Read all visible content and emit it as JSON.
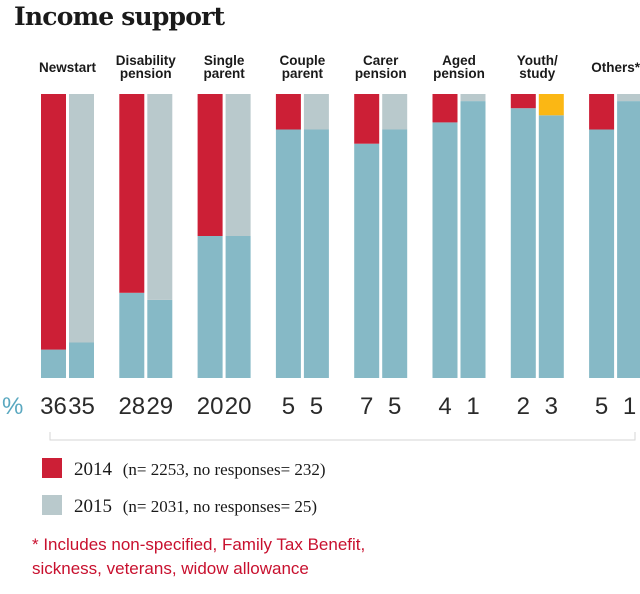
{
  "title": "Income support",
  "percent_symbol": "%",
  "colors": {
    "c2014": "#cc1f36",
    "c2015": "#b9c9cc",
    "remainder": "#86b9c6",
    "highlight": "#fbb714",
    "footnote": "#c8102e"
  },
  "legend": {
    "items": [
      {
        "year": "2014",
        "note": "(n= 2253, no responses= 232)"
      },
      {
        "year": "2015",
        "note": "(n= 2031, no responses= 25)"
      }
    ]
  },
  "footnote": {
    "line1": "* Includes non-specified, Family Tax Benefit,",
    "line2": "sickness, veterans, widow allowance"
  },
  "chart_data": {
    "type": "bar",
    "categories": [
      {
        "name": "Newstart",
        "lines": [
          "Newstart"
        ]
      },
      {
        "name": "Disability pension",
        "lines": [
          "Disability",
          "pension"
        ]
      },
      {
        "name": "Single parent",
        "lines": [
          "Single",
          "parent"
        ]
      },
      {
        "name": "Couple parent",
        "lines": [
          "Couple",
          "parent"
        ]
      },
      {
        "name": "Carer pension",
        "lines": [
          "Carer",
          "pension"
        ]
      },
      {
        "name": "Aged pension",
        "lines": [
          "Aged",
          "pension"
        ]
      },
      {
        "name": "Youth/ study",
        "lines": [
          "Youth/",
          "study"
        ]
      },
      {
        "name": "Others*",
        "lines": [
          "Others*"
        ]
      }
    ],
    "series": [
      {
        "name": "2014",
        "values": [
          36,
          28,
          20,
          5,
          7,
          4,
          2,
          5
        ]
      },
      {
        "name": "2015",
        "values": [
          35,
          29,
          20,
          5,
          5,
          1,
          3,
          1
        ]
      }
    ],
    "highlighted": [
      {
        "series": "2015",
        "category": "Youth/ study"
      }
    ],
    "ylim": [
      0,
      40
    ],
    "unit": "%"
  }
}
